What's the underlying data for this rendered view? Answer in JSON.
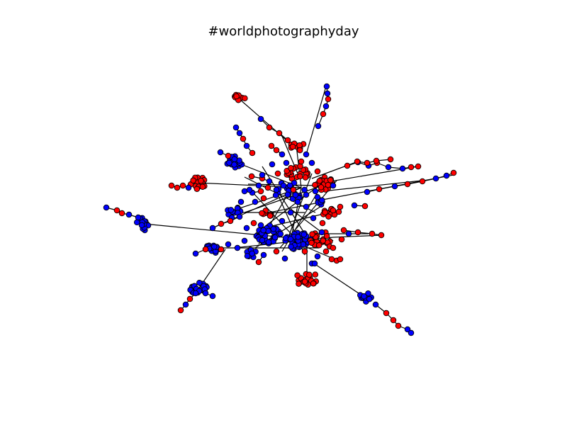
{
  "title": "#worldphotographyday",
  "colors": {
    "red": "#ff0000",
    "blue": "#0000ff",
    "edge": "#000000"
  }
}
